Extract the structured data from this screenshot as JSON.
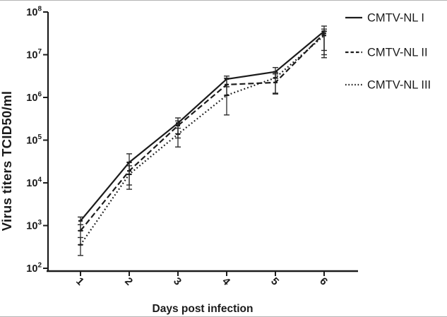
{
  "figure_caption": "",
  "chart_data": {
    "type": "line",
    "title": "",
    "xlabel": "Days post infection",
    "ylabel": "Virus titers TCID50/ml",
    "x": [
      1,
      2,
      3,
      4,
      5,
      6
    ],
    "x_tick_labels": [
      "1",
      "2",
      "3",
      "4",
      "5",
      "6"
    ],
    "y_scale": "log10",
    "ylim_log10": [
      2,
      8
    ],
    "y_tick_base": "10",
    "y_tick_exponents": [
      2,
      3,
      4,
      5,
      6,
      7,
      8
    ],
    "grid": false,
    "legend_position": "right-outside-top",
    "line_color": "#1c1c1c",
    "error_bar_color": "#2a2a2a",
    "series": [
      {
        "name": "CMTV-NL I",
        "line_style": "solid",
        "values_tcid50_per_ml": [
          1300,
          30000,
          250000,
          2700000,
          4000000,
          35000000
        ],
        "log10_values": [
          3.11,
          4.48,
          5.4,
          6.43,
          6.6,
          7.55
        ],
        "err_lo_log10": [
          2.88,
          4.2,
          5.15,
          6.25,
          6.45,
          7.1
        ],
        "err_hi_log10": [
          3.2,
          4.68,
          5.52,
          6.5,
          6.7,
          7.67
        ]
      },
      {
        "name": "CMTV-NL II",
        "line_style": "dashed",
        "values_tcid50_per_ml": [
          760,
          19000,
          220000,
          2000000,
          2200000,
          32000000
        ],
        "log10_values": [
          2.88,
          4.28,
          5.34,
          6.3,
          6.35,
          7.5
        ],
        "err_lo_log10": [
          2.55,
          3.95,
          5.05,
          6.05,
          6.1,
          7.0
        ],
        "err_hi_log10": [
          3.02,
          4.48,
          5.45,
          6.45,
          6.55,
          7.6
        ]
      },
      {
        "name": "CMTV-NL III",
        "line_style": "dotted",
        "values_tcid50_per_ml": [
          350,
          16000,
          140000,
          1100000,
          2900000,
          28000000
        ],
        "log10_values": [
          2.55,
          4.2,
          5.14,
          6.05,
          6.46,
          7.45
        ],
        "err_lo_log10": [
          2.3,
          3.85,
          4.84,
          5.59,
          6.08,
          6.93
        ],
        "err_hi_log10": [
          2.72,
          4.4,
          5.28,
          6.25,
          6.58,
          7.55
        ]
      }
    ]
  }
}
